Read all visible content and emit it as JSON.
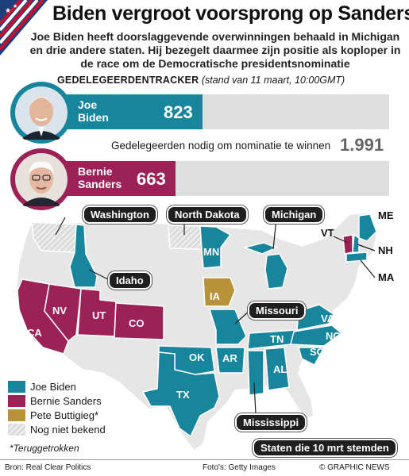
{
  "title": "Biden vergroot voorsprong op Sanders",
  "lead": "Joe Biden heeft doorslaggevende overwinningen behaald in Michigan en drie andere staten. Hij bezegelt daarmee zijn positie als koploper in de race om de Democratische presidentsnominatie",
  "tracker": {
    "label": "GEDELEGEERDENTRACKER",
    "subtitle": "(stand van 11 maart, 10:00GMT)"
  },
  "candidates": [
    {
      "name": "Joe Biden",
      "line1": "Joe",
      "line2": "Biden",
      "delegates": "823",
      "color": "#17859b"
    },
    {
      "name": "Bernie Sanders",
      "line1": "Bernie",
      "line2": "Sanders",
      "delegates": "663",
      "color": "#9c2157"
    }
  ],
  "needed": {
    "text": "Gedelegeerden nodig om nominatie te winnen",
    "value": "1.991"
  },
  "map": {
    "callouts": {
      "washington": "Washington",
      "north_dakota": "North Dakota",
      "michigan": "Michigan",
      "idaho": "Idaho",
      "missouri": "Missouri",
      "mississippi": "Mississippi"
    },
    "state_labels": {
      "me": "ME",
      "vt": "VT",
      "nh": "NH",
      "ma": "MA",
      "mn": "MN",
      "nv": "NV",
      "ut": "UT",
      "co": "CO",
      "ca": "CA",
      "ia": "IA",
      "ok": "OK",
      "ar": "AR",
      "tn": "TN",
      "va": "VA",
      "nc": "NC",
      "sc": "SC",
      "al": "AL",
      "tx": "TX"
    },
    "colors": {
      "biden": "#17859b",
      "sanders": "#9c2157",
      "buttigieg": "#b8923a",
      "unknown": "#d2d2d2",
      "other": "#e6e6e6"
    }
  },
  "legend": {
    "biden": "Joe Biden",
    "sanders": "Bernie Sanders",
    "buttigieg": "Pete Buttigieg*",
    "unknown": "Nog niet bekend"
  },
  "footnote": "*Teruggetrokken",
  "march10_label": "Staten die 10 mrt stemden",
  "source": "Bron: Real Clear Politics",
  "photo_credit": "Foto's: Getty Images",
  "copyright": "© GRAPHIC NEWS"
}
